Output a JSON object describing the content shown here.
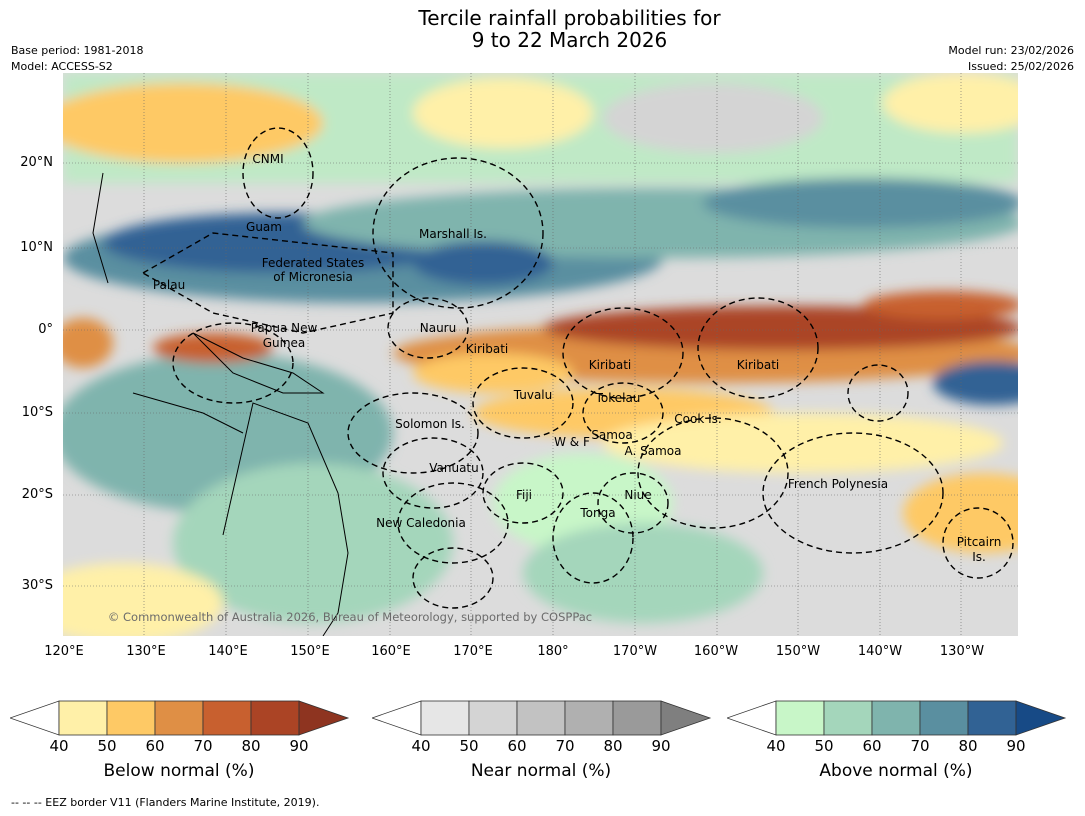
{
  "title_line1": "Tercile rainfall probabilities for",
  "title_line2": "9 to 22 March 2026",
  "meta_left": [
    "Base period: 1981-2018",
    "Model: ACCESS-S2"
  ],
  "meta_right": [
    "Model run: 23/02/2026",
    "Issued: 25/02/2026"
  ],
  "copyright": "© Commonwealth of Australia 2026, Bureau of Meteorology, supported by COSPPac",
  "lat_labels": [
    "20°N",
    "10°N",
    "0°",
    "10°S",
    "20°S",
    "30°S"
  ],
  "lon_labels": [
    "120°E",
    "130°E",
    "140°E",
    "150°E",
    "160°E",
    "170°E",
    "180°",
    "170°W",
    "160°W",
    "150°W",
    "140°W",
    "130°W"
  ],
  "place_labels": [
    "CNMI",
    "Guam",
    "Marshall Is.",
    "Federated States",
    "of Micronesia",
    "Palau",
    "Papua New",
    "Guinea",
    "Nauru",
    "Kiribati",
    "Kiribati",
    "Kiribati",
    "Tuvalu",
    "Tokelau",
    "Solomon Is.",
    "Samoa",
    "W & F",
    "A. Samoa",
    "Cook Is.",
    "Vanuatu",
    "Fiji",
    "Niue",
    "Tonga",
    "French Polynesia",
    "New Caledonia",
    "Pitcairn",
    "Is."
  ],
  "colorbars": [
    {
      "title": "Below normal (%)",
      "ticks": [
        "40",
        "50",
        "60",
        "70",
        "80",
        "90"
      ],
      "colors": [
        "#ffffff",
        "#fff0a8",
        "#fec965",
        "#df8f45",
        "#c8602f",
        "#ab4425",
        "#8e3420"
      ]
    },
    {
      "title": "Near normal (%)",
      "ticks": [
        "40",
        "50",
        "60",
        "70",
        "80",
        "90"
      ],
      "colors": [
        "#ffffff",
        "#e6e6e6",
        "#d4d4d4",
        "#c2c2c2",
        "#b0b0b0",
        "#9a9a9a",
        "#7f7f7f"
      ]
    },
    {
      "title": "Above normal (%)",
      "ticks": [
        "40",
        "50",
        "60",
        "70",
        "80",
        "90"
      ],
      "colors": [
        "#ffffff",
        "#c8f6c8",
        "#a4d6bb",
        "#7fb4ad",
        "#5a8fa0",
        "#316294",
        "#174a86"
      ]
    }
  ],
  "footer": "--  --  -- EEZ border V11 (Flanders Marine Institute, 2019)."
}
